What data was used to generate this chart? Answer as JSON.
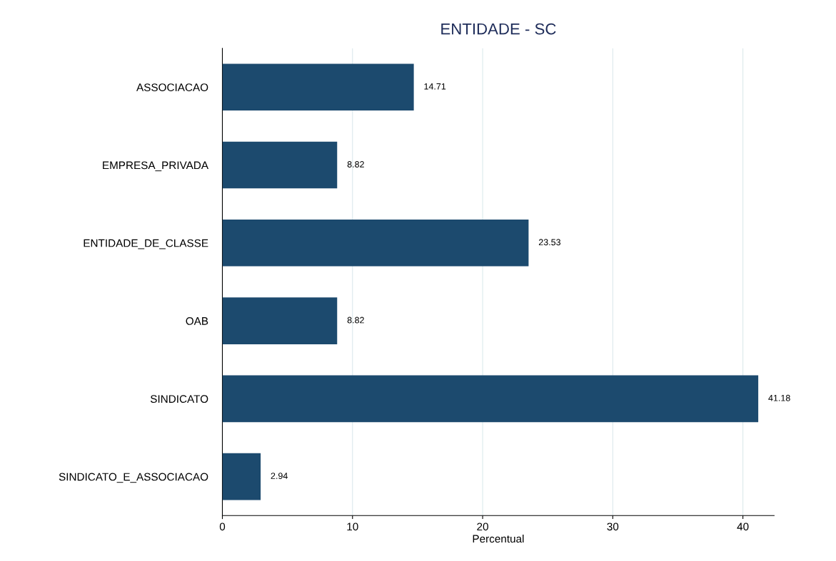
{
  "chart_data": {
    "type": "bar",
    "orientation": "horizontal",
    "title": "ENTIDADE - SC",
    "xlabel": "Percentual",
    "categories": [
      "ASSOCIACAO",
      "EMPRESA_PRIVADA",
      "ENTIDADE_DE_CLASSE",
      "OAB",
      "SINDICATO",
      "SINDICATO_E_ASSOCIACAO"
    ],
    "values": [
      14.71,
      8.82,
      23.53,
      8.82,
      41.18,
      2.94
    ],
    "color": "#1c4a6e",
    "xlim": [
      0,
      42.4
    ],
    "xticks": [
      0,
      10,
      20,
      30,
      40
    ],
    "grid": "x",
    "data_labels": true,
    "legend": false
  }
}
